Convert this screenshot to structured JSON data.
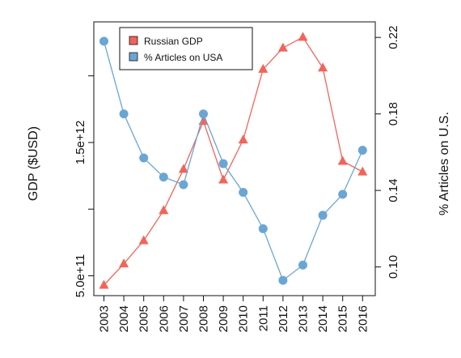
{
  "chart_data": {
    "type": "line",
    "title": "",
    "xlabel": "",
    "ylabel": "GDP ($USD)",
    "y2label": "% Articles on U.S.",
    "x": [
      2003,
      2004,
      2005,
      2006,
      2007,
      2008,
      2009,
      2010,
      2011,
      2012,
      2013,
      2014,
      2015,
      2016
    ],
    "x_tick_labels": [
      "2003",
      "2004",
      "2005",
      "2006",
      "2007",
      "2008",
      "2009",
      "2010",
      "2011",
      "2012",
      "2013",
      "2014",
      "2015",
      "2016"
    ],
    "y_ticks": [
      500000000000,
      1000000000000,
      1500000000000,
      2000000000000
    ],
    "y_tick_labels": [
      "5.0e+11",
      "",
      "1.5e+12",
      ""
    ],
    "y2_ticks": [
      0.1,
      0.14,
      0.18,
      0.22
    ],
    "y2_tick_labels": [
      "0.10",
      "0.14",
      "0.18",
      "0.22"
    ],
    "ylim": [
      430000000000,
      2320000000000
    ],
    "y2lim": [
      0.0905,
      0.2222
    ],
    "grid": false,
    "legend_position": "top-left",
    "series": [
      {
        "name": "Russian GDP",
        "axis": "left",
        "color": "#f2645a",
        "marker": "triangle",
        "values": [
          430000000000,
          590000000000,
          764000000000,
          990000000000,
          1300000000000,
          1660000000000,
          1220000000000,
          1520000000000,
          2050000000000,
          2210000000000,
          2290000000000,
          2060000000000,
          1360000000000,
          1280000000000
        ]
      },
      {
        "name": "% Articles on USA",
        "axis": "right",
        "color": "#6aa6d4",
        "marker": "circle",
        "values": [
          0.218,
          0.18,
          0.157,
          0.147,
          0.143,
          0.18,
          0.154,
          0.139,
          0.12,
          0.093,
          0.101,
          0.127,
          0.138,
          0.161
        ]
      }
    ]
  }
}
